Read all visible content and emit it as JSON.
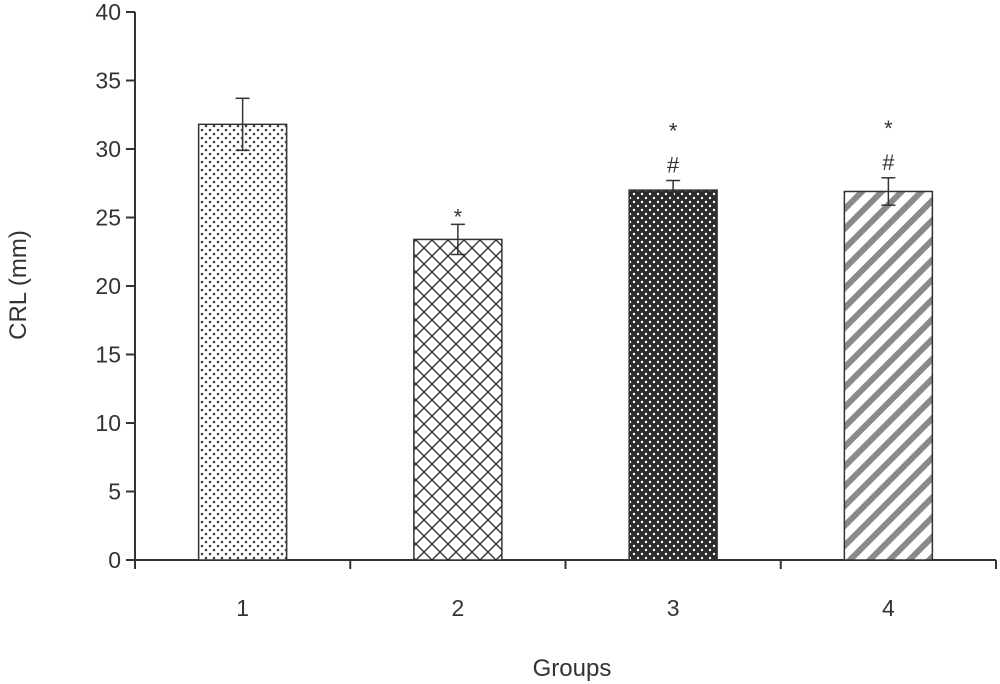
{
  "chart_data": {
    "type": "bar",
    "title": "",
    "xlabel": "Groups",
    "ylabel": "CRL (mm)",
    "categories": [
      "1",
      "2",
      "3",
      "4"
    ],
    "values": [
      31.8,
      23.4,
      27.0,
      26.9
    ],
    "errors": [
      1.9,
      1.1,
      0.7,
      1.0
    ],
    "annotations": [
      [],
      [
        "*"
      ],
      [
        "#",
        "*"
      ],
      [
        "#",
        "*"
      ]
    ],
    "ylim": [
      0,
      40
    ],
    "yticks": [
      0,
      5,
      10,
      15,
      20,
      25,
      30,
      35,
      40
    ],
    "grid": false,
    "legend": "none",
    "patterns": [
      "sparse-dots",
      "crosshatch",
      "dark-dots",
      "diagonal-stripes"
    ]
  }
}
